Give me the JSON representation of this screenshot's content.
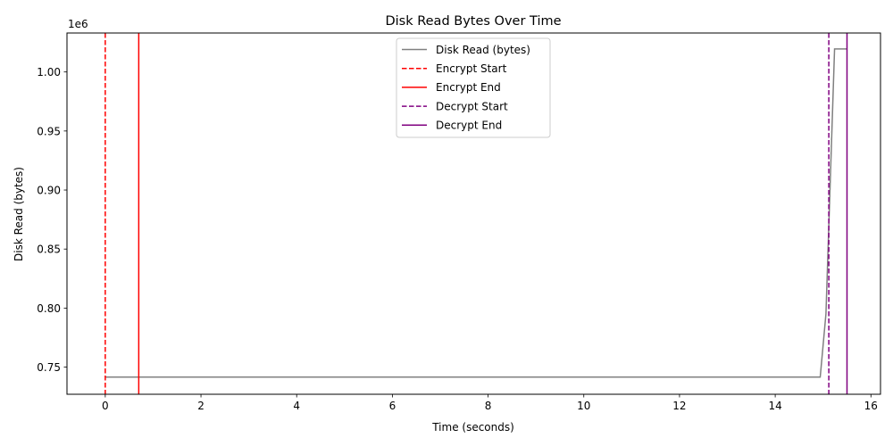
{
  "chart_data": {
    "type": "line",
    "title": "Disk Read Bytes Over Time",
    "xlabel": "Time (seconds)",
    "ylabel": "Disk Read (bytes)",
    "y_offset_text": "1e6",
    "xlim": [
      -0.8,
      16.2
    ],
    "ylim": [
      0.727,
      1.033
    ],
    "y_scale": 1000000,
    "x_ticks": [
      0,
      2,
      4,
      6,
      8,
      10,
      12,
      14,
      16
    ],
    "x_tick_labels": [
      "0",
      "2",
      "4",
      "6",
      "8",
      "10",
      "12",
      "14",
      "16"
    ],
    "y_ticks": [
      0.75,
      0.8,
      0.85,
      0.9,
      0.95,
      1.0
    ],
    "y_tick_labels": [
      "0.75",
      "0.80",
      "0.85",
      "0.90",
      "0.95",
      "1.00"
    ],
    "grid": false,
    "legend_position": "top-center",
    "series": [
      {
        "name": "Disk Read (bytes)",
        "color": "#808080",
        "x": [
          0,
          14.94,
          15.06,
          15.24,
          15.5
        ],
        "y": [
          0.7415,
          0.7415,
          0.795,
          1.0195,
          1.0195
        ]
      }
    ],
    "vlines": [
      {
        "name": "Encrypt Start",
        "x": 0.0,
        "color": "#ff0000",
        "style": "dashed"
      },
      {
        "name": "Encrypt End",
        "x": 0.7,
        "color": "#ff0000",
        "style": "solid"
      },
      {
        "name": "Decrypt Start",
        "x": 15.12,
        "color": "#800080",
        "style": "dashed"
      },
      {
        "name": "Decrypt End",
        "x": 15.5,
        "color": "#800080",
        "style": "solid"
      }
    ]
  }
}
